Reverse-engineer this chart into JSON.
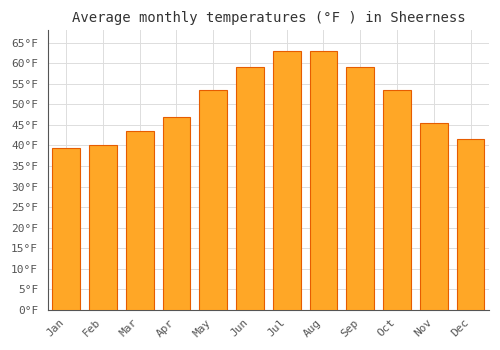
{
  "title": "Average monthly temperatures (°F ) in Sheerness",
  "months": [
    "Jan",
    "Feb",
    "Mar",
    "Apr",
    "May",
    "Jun",
    "Jul",
    "Aug",
    "Sep",
    "Oct",
    "Nov",
    "Dec"
  ],
  "values": [
    39.5,
    40.0,
    43.5,
    47.0,
    53.5,
    59.0,
    63.0,
    63.0,
    59.0,
    53.5,
    45.5,
    41.5
  ],
  "bar_color": "#FFA726",
  "bar_edge_color": "#E65C00",
  "background_color": "#FFFFFF",
  "grid_color": "#DDDDDD",
  "ylim": [
    0,
    68
  ],
  "title_fontsize": 10,
  "tick_fontsize": 8,
  "font_family": "monospace"
}
